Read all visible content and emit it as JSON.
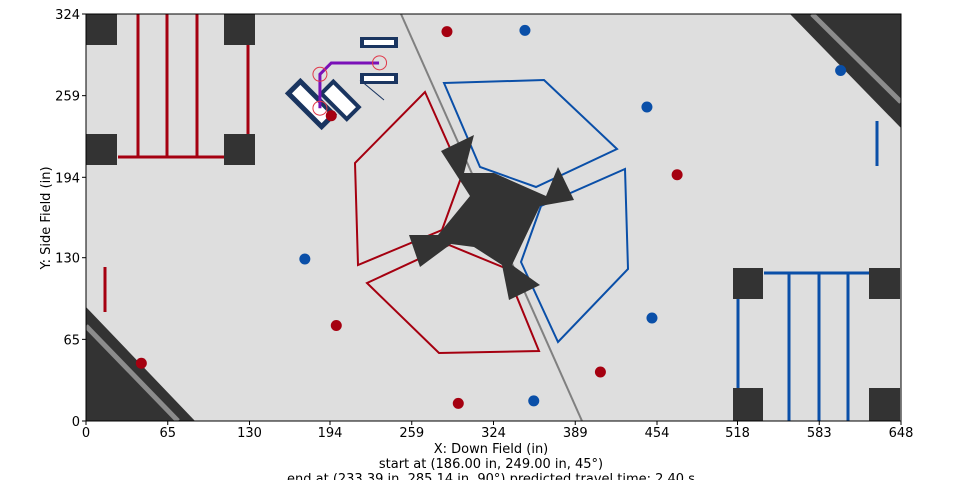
{
  "chart_data": {
    "type": "scatter",
    "xlabel": "X: Down Field (in)",
    "ylabel": "Y: Side Field (in)",
    "xlim": [
      0,
      648
    ],
    "ylim": [
      0,
      324
    ],
    "x_ticks": [
      0,
      65,
      130,
      194,
      259,
      324,
      389,
      454,
      518,
      583,
      648
    ],
    "y_ticks": [
      0,
      65,
      130,
      194,
      259,
      324
    ],
    "captions": [
      "start at (186.00 in, 249.00 in, 45°)",
      "end at (233.39 in, 285.14 in, 90°) predicted travel time: 2.40 s"
    ],
    "colors": {
      "red": "#a50010",
      "blue": "#0a4fa8",
      "path": "#7a10b8",
      "robot": "#1a3560",
      "field": "#dedede",
      "element": "#333333"
    },
    "red_balls": [
      [
        287,
        310
      ],
      [
        195,
        243
      ],
      [
        470,
        196
      ],
      [
        44,
        46
      ],
      [
        199,
        76
      ],
      [
        409,
        39
      ],
      [
        296,
        14
      ]
    ],
    "blue_balls": [
      [
        349,
        311
      ],
      [
        600,
        279
      ],
      [
        446,
        250
      ],
      [
        174,
        129
      ],
      [
        450,
        82
      ],
      [
        356,
        16
      ]
    ],
    "path": [
      [
        186,
        249
      ],
      [
        186,
        276
      ],
      [
        195,
        285
      ],
      [
        233,
        285
      ]
    ],
    "start_pose": [
      186,
      249,
      45
    ],
    "end_pose": [
      233.39,
      285.14,
      90
    ]
  }
}
